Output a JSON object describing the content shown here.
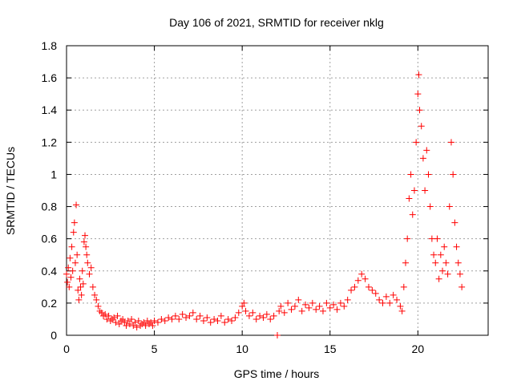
{
  "chart_data": {
    "type": "scatter",
    "title": "Day 106 of 2021, SRMTID for receiver nklg",
    "xlabel": "GPS time / hours",
    "ylabel": "SRMTID / TECUs",
    "xlim": [
      0,
      24
    ],
    "ylim": [
      0,
      1.8
    ],
    "xticks": [
      0,
      5,
      10,
      15,
      20
    ],
    "xtick_labels": [
      "0",
      "5",
      "10",
      "15",
      "20"
    ],
    "yticks": [
      0,
      0.2,
      0.4,
      0.6,
      0.8,
      1,
      1.2,
      1.4,
      1.6,
      1.8
    ],
    "ytick_labels": [
      "0",
      "0.2",
      "0.4",
      "0.6",
      "0.8",
      "1",
      "1.2",
      "1.4",
      "1.6",
      "1.8"
    ],
    "grid": true,
    "marker": "plus",
    "color": "#ff0000",
    "series": [
      {
        "name": "SRMTID",
        "points": [
          [
            0.0,
            0.38
          ],
          [
            0.05,
            0.33
          ],
          [
            0.1,
            0.42
          ],
          [
            0.15,
            0.3
          ],
          [
            0.2,
            0.48
          ],
          [
            0.25,
            0.36
          ],
          [
            0.3,
            0.55
          ],
          [
            0.35,
            0.4
          ],
          [
            0.4,
            0.64
          ],
          [
            0.45,
            0.7
          ],
          [
            0.5,
            0.45
          ],
          [
            0.55,
            0.81
          ],
          [
            0.6,
            0.5
          ],
          [
            0.65,
            0.28
          ],
          [
            0.7,
            0.22
          ],
          [
            0.75,
            0.35
          ],
          [
            0.8,
            0.3
          ],
          [
            0.85,
            0.25
          ],
          [
            0.9,
            0.4
          ],
          [
            0.95,
            0.32
          ],
          [
            1.0,
            0.58
          ],
          [
            1.05,
            0.62
          ],
          [
            1.1,
            0.55
          ],
          [
            1.15,
            0.5
          ],
          [
            1.2,
            0.45
          ],
          [
            1.3,
            0.38
          ],
          [
            1.4,
            0.42
          ],
          [
            1.5,
            0.3
          ],
          [
            1.6,
            0.25
          ],
          [
            1.7,
            0.22
          ],
          [
            1.8,
            0.18
          ],
          [
            1.9,
            0.15
          ],
          [
            2.0,
            0.14
          ],
          [
            2.1,
            0.12
          ],
          [
            2.2,
            0.13
          ],
          [
            2.3,
            0.1
          ],
          [
            2.4,
            0.12
          ],
          [
            2.5,
            0.09
          ],
          [
            2.6,
            0.1
          ],
          [
            2.7,
            0.11
          ],
          [
            2.8,
            0.08
          ],
          [
            2.9,
            0.12
          ],
          [
            3.0,
            0.07
          ],
          [
            3.1,
            0.09
          ],
          [
            3.2,
            0.1
          ],
          [
            3.3,
            0.08
          ],
          [
            3.4,
            0.06
          ],
          [
            3.5,
            0.09
          ],
          [
            3.6,
            0.07
          ],
          [
            3.7,
            0.1
          ],
          [
            3.8,
            0.06
          ],
          [
            3.9,
            0.08
          ],
          [
            4.0,
            0.05
          ],
          [
            4.1,
            0.09
          ],
          [
            4.2,
            0.06
          ],
          [
            4.3,
            0.07
          ],
          [
            4.4,
            0.08
          ],
          [
            4.5,
            0.06
          ],
          [
            4.6,
            0.09
          ],
          [
            4.7,
            0.07
          ],
          [
            4.8,
            0.08
          ],
          [
            4.9,
            0.06
          ],
          [
            5.0,
            0.09
          ],
          [
            5.2,
            0.08
          ],
          [
            5.4,
            0.1
          ],
          [
            5.6,
            0.09
          ],
          [
            5.8,
            0.11
          ],
          [
            6.0,
            0.1
          ],
          [
            6.2,
            0.12
          ],
          [
            6.4,
            0.1
          ],
          [
            6.6,
            0.13
          ],
          [
            6.8,
            0.11
          ],
          [
            7.0,
            0.12
          ],
          [
            7.2,
            0.14
          ],
          [
            7.4,
            0.1
          ],
          [
            7.6,
            0.12
          ],
          [
            7.8,
            0.09
          ],
          [
            8.0,
            0.11
          ],
          [
            8.2,
            0.08
          ],
          [
            8.4,
            0.1
          ],
          [
            8.6,
            0.09
          ],
          [
            8.8,
            0.12
          ],
          [
            9.0,
            0.08
          ],
          [
            9.2,
            0.1
          ],
          [
            9.4,
            0.09
          ],
          [
            9.6,
            0.11
          ],
          [
            9.8,
            0.14
          ],
          [
            10.0,
            0.18
          ],
          [
            10.1,
            0.2
          ],
          [
            10.2,
            0.15
          ],
          [
            10.4,
            0.12
          ],
          [
            10.6,
            0.14
          ],
          [
            10.8,
            0.1
          ],
          [
            11.0,
            0.12
          ],
          [
            11.2,
            0.11
          ],
          [
            11.4,
            0.13
          ],
          [
            11.6,
            0.1
          ],
          [
            11.8,
            0.12
          ],
          [
            12.0,
            0.0
          ],
          [
            12.1,
            0.15
          ],
          [
            12.2,
            0.18
          ],
          [
            12.4,
            0.14
          ],
          [
            12.6,
            0.2
          ],
          [
            12.8,
            0.16
          ],
          [
            13.0,
            0.18
          ],
          [
            13.2,
            0.22
          ],
          [
            13.4,
            0.15
          ],
          [
            13.6,
            0.19
          ],
          [
            13.8,
            0.17
          ],
          [
            14.0,
            0.2
          ],
          [
            14.2,
            0.16
          ],
          [
            14.4,
            0.18
          ],
          [
            14.6,
            0.15
          ],
          [
            14.8,
            0.2
          ],
          [
            15.0,
            0.17
          ],
          [
            15.2,
            0.19
          ],
          [
            15.4,
            0.16
          ],
          [
            15.6,
            0.2
          ],
          [
            15.8,
            0.18
          ],
          [
            16.0,
            0.22
          ],
          [
            16.2,
            0.28
          ],
          [
            16.4,
            0.3
          ],
          [
            16.6,
            0.34
          ],
          [
            16.8,
            0.38
          ],
          [
            17.0,
            0.35
          ],
          [
            17.2,
            0.3
          ],
          [
            17.4,
            0.28
          ],
          [
            17.6,
            0.26
          ],
          [
            17.8,
            0.22
          ],
          [
            18.0,
            0.2
          ],
          [
            18.2,
            0.24
          ],
          [
            18.4,
            0.2
          ],
          [
            18.6,
            0.25
          ],
          [
            18.8,
            0.22
          ],
          [
            19.0,
            0.18
          ],
          [
            19.1,
            0.15
          ],
          [
            19.2,
            0.3
          ],
          [
            19.3,
            0.45
          ],
          [
            19.4,
            0.6
          ],
          [
            19.5,
            0.85
          ],
          [
            19.6,
            1.0
          ],
          [
            19.7,
            0.75
          ],
          [
            19.8,
            0.9
          ],
          [
            19.9,
            1.2
          ],
          [
            20.0,
            1.5
          ],
          [
            20.05,
            1.62
          ],
          [
            20.1,
            1.4
          ],
          [
            20.2,
            1.3
          ],
          [
            20.3,
            1.1
          ],
          [
            20.4,
            0.9
          ],
          [
            20.5,
            1.15
          ],
          [
            20.6,
            1.0
          ],
          [
            20.7,
            0.8
          ],
          [
            20.8,
            0.6
          ],
          [
            20.9,
            0.5
          ],
          [
            21.0,
            0.45
          ],
          [
            21.1,
            0.6
          ],
          [
            21.2,
            0.35
          ],
          [
            21.3,
            0.5
          ],
          [
            21.4,
            0.4
          ],
          [
            21.5,
            0.55
          ],
          [
            21.6,
            0.45
          ],
          [
            21.7,
            0.38
          ],
          [
            21.8,
            0.8
          ],
          [
            21.9,
            1.2
          ],
          [
            22.0,
            1.0
          ],
          [
            22.1,
            0.7
          ],
          [
            22.2,
            0.55
          ],
          [
            22.3,
            0.45
          ],
          [
            22.4,
            0.38
          ],
          [
            22.5,
            0.3
          ]
        ]
      }
    ]
  }
}
